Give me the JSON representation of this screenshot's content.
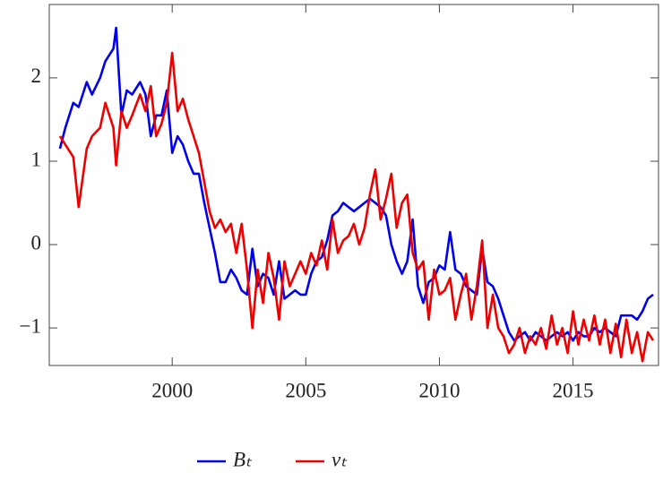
{
  "chart_data": {
    "type": "line",
    "x": [
      1995.8,
      1996,
      1996.3,
      1996.5,
      1996.8,
      1997,
      1997.3,
      1997.5,
      1997.8,
      1997.9,
      1998.1,
      1998.3,
      1998.5,
      1998.8,
      1999,
      1999.2,
      1999.4,
      1999.6,
      1999.8,
      2000,
      2000.2,
      2000.4,
      2000.6,
      2000.8,
      2001,
      2001.2,
      2001.4,
      2001.6,
      2001.8,
      2002,
      2002.2,
      2002.4,
      2002.6,
      2002.8,
      2003,
      2003.2,
      2003.4,
      2003.6,
      2003.8,
      2004,
      2004.2,
      2004.4,
      2004.6,
      2004.8,
      2005,
      2005.2,
      2005.4,
      2005.6,
      2005.8,
      2006,
      2006.2,
      2006.4,
      2006.6,
      2006.8,
      2007,
      2007.2,
      2007.4,
      2007.6,
      2007.8,
      2008,
      2008.2,
      2008.4,
      2008.6,
      2008.8,
      2009,
      2009.2,
      2009.4,
      2009.6,
      2009.8,
      2010,
      2010.2,
      2010.4,
      2010.6,
      2010.8,
      2011,
      2011.2,
      2011.4,
      2011.6,
      2011.8,
      2012,
      2012.2,
      2012.4,
      2012.6,
      2012.8,
      2013,
      2013.2,
      2013.4,
      2013.6,
      2013.8,
      2014,
      2014.2,
      2014.4,
      2014.6,
      2014.8,
      2015,
      2015.2,
      2015.4,
      2015.6,
      2015.8,
      2016,
      2016.2,
      2016.4,
      2016.6,
      2016.8,
      2017,
      2017.2,
      2017.4,
      2017.6,
      2017.8,
      2018
    ],
    "series": [
      {
        "name": "Bₜ",
        "color": "#0000ee",
        "values": [
          1.15,
          1.4,
          1.7,
          1.65,
          1.95,
          1.8,
          2.0,
          2.2,
          2.35,
          2.6,
          1.55,
          1.85,
          1.8,
          1.95,
          1.8,
          1.3,
          1.55,
          1.55,
          1.85,
          1.1,
          1.3,
          1.2,
          1.0,
          0.85,
          0.85,
          0.5,
          0.2,
          -0.1,
          -0.45,
          -0.45,
          -0.3,
          -0.4,
          -0.55,
          -0.6,
          -0.05,
          -0.5,
          -0.35,
          -0.4,
          -0.6,
          -0.2,
          -0.65,
          -0.6,
          -0.55,
          -0.6,
          -0.6,
          -0.35,
          -0.2,
          -0.15,
          0.05,
          0.35,
          0.4,
          0.5,
          0.45,
          0.4,
          0.45,
          0.5,
          0.55,
          0.5,
          0.45,
          0.35,
          0.0,
          -0.2,
          -0.35,
          -0.2,
          0.3,
          -0.5,
          -0.7,
          -0.45,
          -0.4,
          -0.25,
          -0.3,
          0.15,
          -0.3,
          -0.35,
          -0.5,
          -0.55,
          -0.6,
          -0.05,
          -0.45,
          -0.5,
          -0.65,
          -0.85,
          -1.05,
          -1.15,
          -1.1,
          -1.05,
          -1.15,
          -1.05,
          -1.1,
          -1.15,
          -1.1,
          -1.05,
          -1.1,
          -1.05,
          -1.15,
          -1.05,
          -1.1,
          -1.1,
          -1.0,
          -1.05,
          -1.0,
          -1.05,
          -1.1,
          -0.85,
          -0.85,
          -0.85,
          -0.9,
          -0.8,
          -0.65,
          -0.6
        ]
      },
      {
        "name": "vₜ",
        "color": "#ee0000",
        "values": [
          1.3,
          1.2,
          1.05,
          0.45,
          1.15,
          1.3,
          1.4,
          1.7,
          1.4,
          0.95,
          1.6,
          1.4,
          1.55,
          1.8,
          1.6,
          1.9,
          1.3,
          1.45,
          1.7,
          2.3,
          1.6,
          1.75,
          1.5,
          1.3,
          1.1,
          0.75,
          0.4,
          0.2,
          0.3,
          0.15,
          0.25,
          -0.1,
          0.25,
          -0.3,
          -1.0,
          -0.3,
          -0.7,
          -0.1,
          -0.4,
          -0.9,
          -0.2,
          -0.5,
          -0.35,
          -0.2,
          -0.35,
          -0.1,
          -0.25,
          0.05,
          -0.3,
          0.3,
          -0.1,
          0.05,
          0.1,
          0.25,
          0.0,
          0.2,
          0.6,
          0.9,
          0.3,
          0.55,
          0.85,
          0.2,
          0.5,
          0.6,
          -0.1,
          -0.3,
          -0.2,
          -0.9,
          -0.3,
          -0.6,
          -0.55,
          -0.4,
          -0.9,
          -0.6,
          -0.35,
          -0.9,
          -0.5,
          0.05,
          -1.0,
          -0.6,
          -1.0,
          -1.1,
          -1.3,
          -1.2,
          -1.0,
          -1.3,
          -1.1,
          -1.2,
          -1.0,
          -1.25,
          -0.85,
          -1.2,
          -1.0,
          -1.3,
          -0.8,
          -1.2,
          -0.9,
          -1.15,
          -0.85,
          -1.2,
          -0.9,
          -1.3,
          -0.95,
          -1.35,
          -0.9,
          -1.3,
          -1.05,
          -1.4,
          -1.05,
          -1.15
        ]
      }
    ],
    "xlim": [
      1995.4,
      2018.2
    ],
    "xticks": [
      2000,
      2005,
      2010,
      2015
    ],
    "ylim": [
      -1.45,
      2.88
    ],
    "yticks": [
      {
        "value": -1,
        "label": "−1"
      },
      0,
      1,
      2
    ],
    "legend": "bottom"
  }
}
